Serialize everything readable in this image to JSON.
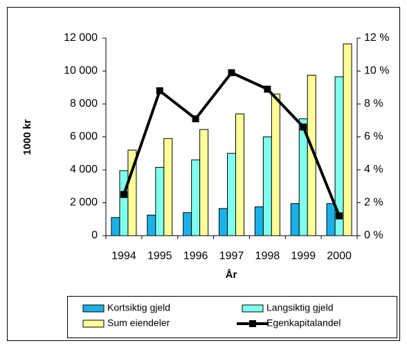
{
  "chart_data": {
    "type": "bar",
    "xlabel": "År",
    "ylabel": "1000 kr",
    "categories": [
      "1994",
      "1995",
      "1996",
      "1997",
      "1998",
      "1999",
      "2000"
    ],
    "series": [
      {
        "name": "Kortsiktig gjeld",
        "color": "#1ab2e6",
        "values": [
          1100,
          1250,
          1400,
          1650,
          1750,
          1950,
          1950
        ]
      },
      {
        "name": "Langsiktig gjeld",
        "color": "#80ffee",
        "values": [
          3950,
          4150,
          4600,
          5000,
          6000,
          7100,
          9650
        ]
      },
      {
        "name": "Sum eiendeler",
        "color": "#ffff99",
        "values": [
          5200,
          5900,
          6450,
          7400,
          8600,
          9750,
          11650
        ]
      },
      {
        "name": "Egenkapitalandel",
        "color": "#000000",
        "type": "line",
        "axis": "y2",
        "values": [
          2.5,
          8.8,
          7.1,
          9.9,
          8.9,
          6.6,
          1.2
        ]
      }
    ],
    "ylim": [
      0,
      12000
    ],
    "yticks": [
      0,
      {
        "value": 2000,
        "label": "2 000"
      },
      {
        "value": 4000,
        "label": "4 000"
      },
      {
        "value": 6000,
        "label": "6 000"
      },
      {
        "value": 8000,
        "label": "8 000"
      },
      {
        "value": 10000,
        "label": "10 000"
      },
      {
        "value": 12000,
        "label": "12 000"
      }
    ],
    "y2lim": [
      0,
      12
    ],
    "y2ticks": [
      {
        "value": 0,
        "label": "0 %"
      },
      {
        "value": 2,
        "label": "2 %"
      },
      {
        "value": 4,
        "label": "4 %"
      },
      {
        "value": 6,
        "label": "6 %"
      },
      {
        "value": 8,
        "label": "8 %"
      },
      {
        "value": 10,
        "label": "10 %"
      },
      {
        "value": 12,
        "label": "12 %"
      }
    ],
    "legend": "bottom"
  }
}
